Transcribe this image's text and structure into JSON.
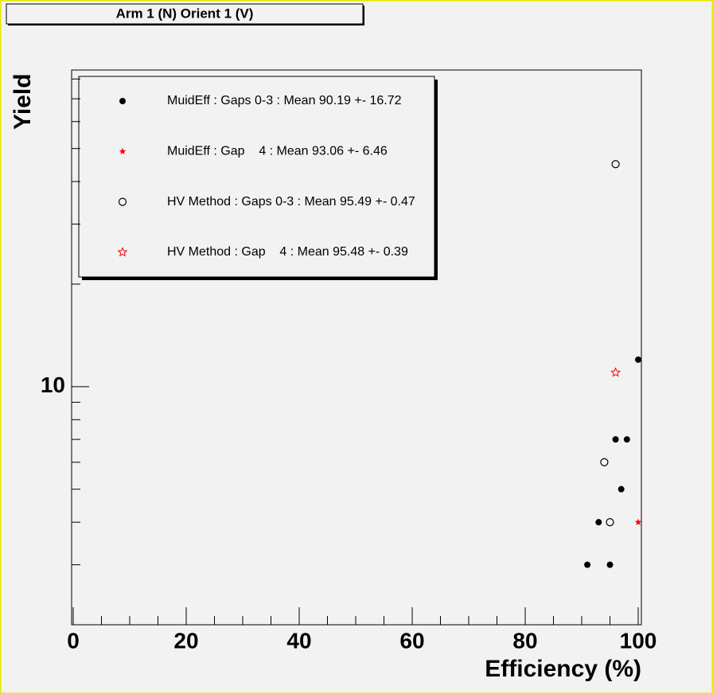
{
  "chart_data": {
    "type": "scatter",
    "title": "Arm 1 (N) Orient 1 (V)",
    "x_label": "Efficiency (%)",
    "y_label": "Yield",
    "xlim": [
      0,
      100
    ],
    "xticks": [
      0,
      20,
      40,
      60,
      80,
      100
    ],
    "x_minor_ticks": [
      5,
      10,
      15,
      25,
      30,
      35,
      45,
      50,
      55,
      65,
      70,
      75,
      85,
      90,
      95
    ],
    "ylim": [
      2,
      85
    ],
    "y_log": true,
    "yticks": [
      10
    ],
    "y_minor_ticks": [
      3,
      4,
      5,
      6,
      7,
      8,
      9,
      20,
      30,
      40,
      50,
      60,
      70,
      80
    ],
    "series": [
      {
        "name": "MuidEff : Gaps 0-3 : Mean 90.19 +- 16.72",
        "color": "#000000",
        "marker": "filled-circle",
        "x": [
          91,
          93,
          95,
          97,
          96,
          98,
          100
        ],
        "values": [
          3,
          4,
          3,
          5,
          7,
          7,
          12
        ]
      },
      {
        "name": "MuidEff : Gap    4 : Mean 93.06 +- 6.46",
        "color": "#ff0000",
        "marker": "filled-star",
        "x": [
          100
        ],
        "values": [
          4
        ]
      },
      {
        "name": "HV Method : Gaps 0-3 : Mean 95.49 +- 0.47",
        "color": "#000000",
        "marker": "open-circle",
        "x": [
          96,
          94,
          95
        ],
        "values": [
          45,
          6,
          4
        ]
      },
      {
        "name": "HV Method : Gap    4 : Mean 95.48 +- 0.39",
        "color": "#ff0000",
        "marker": "open-star",
        "x": [
          96
        ],
        "values": [
          11
        ]
      }
    ]
  }
}
